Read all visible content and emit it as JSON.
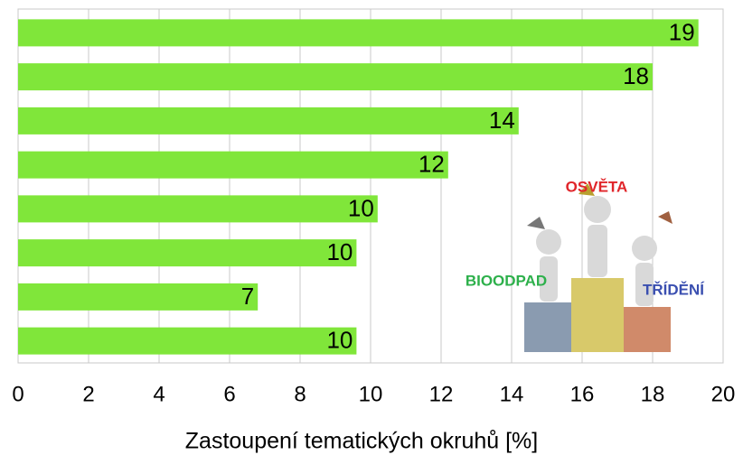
{
  "chart_data": {
    "type": "bar",
    "orientation": "horizontal",
    "x_label": "Zastoupení tematických okruhů [%]",
    "categories": [
      null,
      null,
      null,
      null,
      null,
      null,
      null,
      null
    ],
    "values": [
      19.3,
      18,
      14.2,
      12.2,
      10.2,
      9.6,
      6.8,
      9.6
    ],
    "value_labels": [
      "19",
      "18",
      "14",
      "12",
      "10",
      "10",
      "7",
      "10"
    ],
    "color": "#80e63a",
    "xlim": [
      0,
      20
    ],
    "xticks": [
      0,
      2,
      4,
      6,
      8,
      10,
      12,
      14,
      16,
      18,
      20
    ],
    "grid": true,
    "annotations": [
      {
        "text": "OSVĚTA",
        "color": "#e0252a"
      },
      {
        "text": "BIOODPAD",
        "color": "#2db04b"
      },
      {
        "text": "TŘÍDĚNÍ",
        "color": "#3a4fb0"
      }
    ]
  }
}
